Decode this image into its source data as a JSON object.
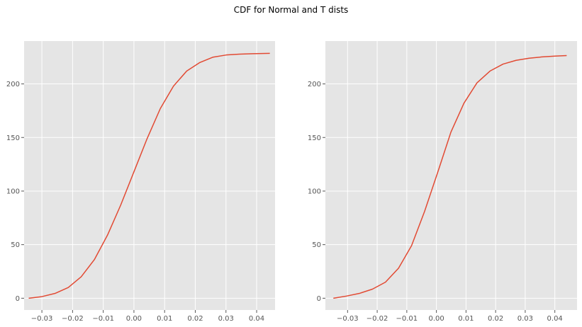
{
  "figure": {
    "title": "CDF for Normal and T dists"
  },
  "chart_data": [
    {
      "type": "line",
      "title": "",
      "xlabel": "",
      "ylabel": "",
      "xlim": [
        -0.0358,
        0.046
      ],
      "ylim": [
        -11,
        240
      ],
      "xticks": [
        -0.03,
        -0.02,
        -0.01,
        0.0,
        0.01,
        0.02,
        0.03,
        0.04
      ],
      "xtick_labels": [
        "−0.03",
        "−0.02",
        "−0.01",
        "0.00",
        "0.01",
        "0.02",
        "0.03",
        "0.04"
      ],
      "yticks": [
        0,
        50,
        100,
        150,
        200
      ],
      "ytick_labels": [
        "0",
        "50",
        "100",
        "150",
        "200"
      ],
      "grid": true,
      "background": "#e5e5e5",
      "line_color": "#e24a33",
      "series": [
        {
          "x": [
            -0.0343,
            -0.03,
            -0.0257,
            -0.0214,
            -0.0172,
            -0.0129,
            -0.0086,
            -0.0043,
            0.0,
            0.0043,
            0.0086,
            0.0129,
            0.0172,
            0.0215,
            0.0258,
            0.0301,
            0.0344,
            0.0387,
            0.0443
          ],
          "y": [
            0,
            1.5,
            4.5,
            10,
            20,
            36,
            59,
            87,
            118,
            149,
            177,
            198,
            212,
            220,
            225,
            227,
            227.8,
            228.2,
            228.5
          ]
        }
      ]
    },
    {
      "type": "line",
      "title": "",
      "xlabel": "",
      "ylabel": "",
      "xlim": [
        -0.0375,
        0.0475
      ],
      "ylim": [
        -11,
        240
      ],
      "xticks": [
        -0.03,
        -0.02,
        -0.01,
        0.0,
        0.01,
        0.02,
        0.03,
        0.04
      ],
      "xtick_labels": [
        "−0.03",
        "−0.02",
        "−0.01",
        "0.00",
        "0.01",
        "0.02",
        "0.03",
        "0.04"
      ],
      "yticks": [
        0,
        50,
        100,
        150,
        200
      ],
      "ytick_labels": [
        "0",
        "50",
        "100",
        "150",
        "200"
      ],
      "grid": true,
      "background": "#e5e5e5",
      "line_color": "#e24a33",
      "series": [
        {
          "x": [
            -0.0348,
            -0.0304,
            -0.026,
            -0.0216,
            -0.0172,
            -0.0128,
            -0.0084,
            -0.004,
            0.0005,
            0.0049,
            0.0093,
            0.0137,
            0.0181,
            0.0225,
            0.0269,
            0.0313,
            0.0357,
            0.0401,
            0.044
          ],
          "y": [
            0,
            2,
            4.5,
            8.5,
            15,
            28,
            49,
            81,
            118,
            155,
            182,
            201,
            212,
            218.5,
            222,
            224,
            225.2,
            226,
            226.5
          ]
        }
      ]
    }
  ]
}
